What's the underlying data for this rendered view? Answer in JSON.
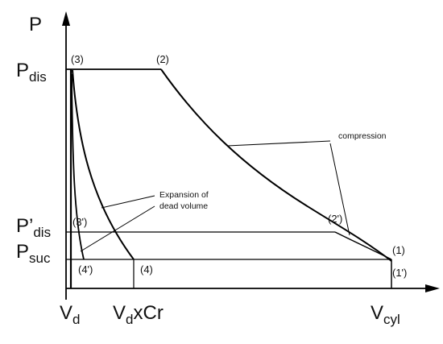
{
  "axes": {
    "y_label": "P",
    "x_ticks": [
      {
        "main": "V",
        "sub": "d",
        "tail": ""
      },
      {
        "main": "V",
        "sub": "d",
        "tail": "xCr"
      },
      {
        "main": "V",
        "sub": "cyl",
        "tail": ""
      }
    ],
    "y_ticks": [
      {
        "main": "P",
        "sub": "dis"
      },
      {
        "main": "P’",
        "sub": "dis"
      },
      {
        "main": "P",
        "sub": "suc"
      }
    ]
  },
  "points": [
    "(3)",
    "(2)",
    "(3')",
    "(2')",
    "(1)",
    "(4')",
    "(4)",
    "(1')"
  ],
  "annotations": {
    "compression": "compression",
    "expansion_line1": "Expansion of",
    "expansion_line2": "dead volume"
  },
  "colors": {
    "line": "#000000",
    "background": "#ffffff"
  }
}
